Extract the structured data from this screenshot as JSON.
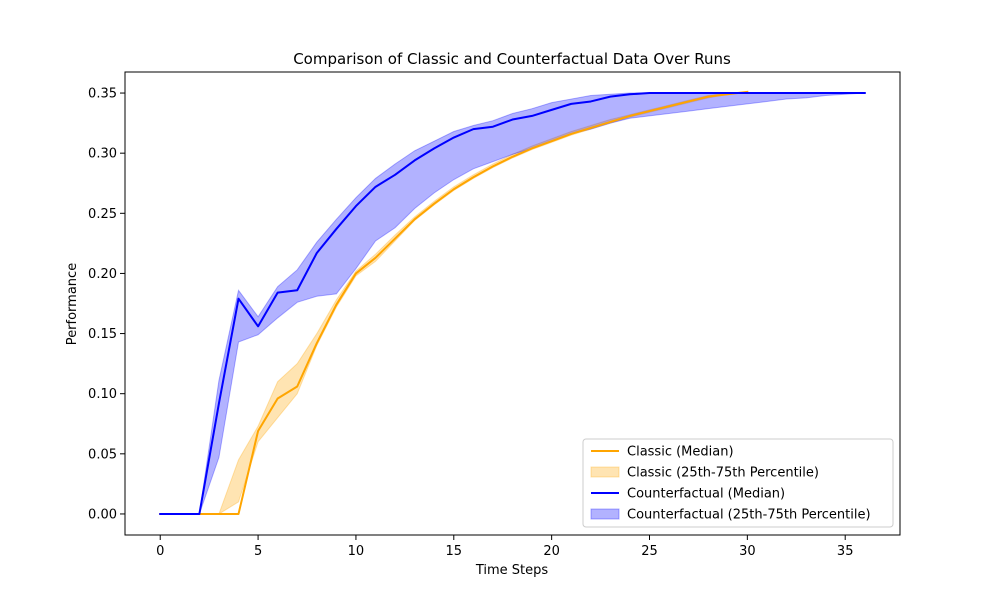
{
  "chart_data": {
    "type": "line",
    "title": "Comparison of Classic and Counterfactual Data Over Runs",
    "xlabel": "Time Steps",
    "ylabel": "Performance",
    "xlim": [
      -1.8,
      37.8
    ],
    "ylim": [
      -0.0175,
      0.3675
    ],
    "xticks": [
      0,
      5,
      10,
      15,
      20,
      25,
      30,
      35
    ],
    "yticks": [
      0.0,
      0.05,
      0.1,
      0.15,
      0.2,
      0.25,
      0.3,
      0.35
    ],
    "ytick_labels": [
      "0.00",
      "0.05",
      "0.10",
      "0.15",
      "0.20",
      "0.25",
      "0.30",
      "0.35"
    ],
    "grid": false,
    "legend_position": "lower-right",
    "series": [
      {
        "name": "Classic (Median)",
        "kind": "line",
        "color": "#ffa500",
        "x": [
          0,
          1,
          2,
          3,
          4,
          5,
          6,
          7,
          8,
          9,
          10,
          11,
          12,
          13,
          14,
          15,
          16,
          17,
          18,
          19,
          20,
          21,
          22,
          23,
          24,
          25,
          26,
          27,
          28,
          29,
          30
        ],
        "y": [
          0,
          0,
          0,
          0,
          0,
          0.069,
          0.096,
          0.106,
          0.142,
          0.174,
          0.2,
          0.213,
          0.229,
          0.245,
          0.258,
          0.27,
          0.28,
          0.289,
          0.297,
          0.304,
          0.31,
          0.316,
          0.321,
          0.326,
          0.331,
          0.335,
          0.339,
          0.343,
          0.347,
          0.349,
          0.351
        ]
      },
      {
        "name": "Classic (25th-75th Percentile)",
        "kind": "band",
        "color": "#ffa500",
        "opacity": 0.3,
        "x": [
          0,
          1,
          2,
          3,
          4,
          5,
          6,
          7,
          8,
          9,
          10,
          11,
          12,
          13,
          14,
          15,
          16,
          17,
          18,
          19,
          20,
          21,
          22,
          23,
          24,
          25,
          26,
          27,
          28,
          29,
          30
        ],
        "lower": [
          0,
          0,
          0,
          0,
          0.01,
          0.06,
          0.08,
          0.1,
          0.14,
          0.172,
          0.198,
          0.21,
          0.227,
          0.244,
          0.257,
          0.269,
          0.279,
          0.288,
          0.296,
          0.303,
          0.309,
          0.315,
          0.32,
          0.325,
          0.33,
          0.334,
          0.338,
          0.342,
          0.346,
          0.349,
          0.351
        ],
        "upper": [
          0,
          0,
          0,
          0,
          0.045,
          0.073,
          0.11,
          0.125,
          0.15,
          0.178,
          0.202,
          0.216,
          0.232,
          0.247,
          0.26,
          0.272,
          0.282,
          0.291,
          0.299,
          0.306,
          0.312,
          0.318,
          0.323,
          0.328,
          0.332,
          0.336,
          0.34,
          0.344,
          0.348,
          0.35,
          0.351
        ]
      },
      {
        "name": "Counterfactual (Median)",
        "kind": "line",
        "color": "#0000ff",
        "x": [
          0,
          1,
          2,
          3,
          4,
          5,
          6,
          7,
          8,
          9,
          10,
          11,
          12,
          13,
          14,
          15,
          16,
          17,
          18,
          19,
          20,
          21,
          22,
          23,
          24,
          25,
          26,
          27,
          28,
          29,
          30,
          31,
          32,
          33,
          34,
          35,
          36
        ],
        "y": [
          0,
          0,
          0,
          0.092,
          0.179,
          0.156,
          0.184,
          0.186,
          0.217,
          0.237,
          0.256,
          0.272,
          0.282,
          0.294,
          0.304,
          0.313,
          0.32,
          0.322,
          0.328,
          0.331,
          0.336,
          0.341,
          0.343,
          0.347,
          0.349,
          0.35,
          0.35,
          0.35,
          0.35,
          0.35,
          0.35,
          0.35,
          0.35,
          0.35,
          0.35,
          0.35,
          0.35
        ]
      },
      {
        "name": "Counterfactual (25th-75th Percentile)",
        "kind": "band",
        "color": "#0000ff",
        "opacity": 0.3,
        "x": [
          0,
          1,
          2,
          3,
          4,
          5,
          6,
          7,
          8,
          9,
          10,
          11,
          12,
          13,
          14,
          15,
          16,
          17,
          18,
          19,
          20,
          21,
          22,
          23,
          24,
          25,
          26,
          27,
          28,
          29,
          30,
          31,
          32,
          33,
          34,
          35,
          36
        ],
        "lower": [
          0,
          0,
          0,
          0.047,
          0.143,
          0.149,
          0.163,
          0.176,
          0.181,
          0.183,
          0.204,
          0.227,
          0.238,
          0.254,
          0.267,
          0.278,
          0.287,
          0.293,
          0.299,
          0.304,
          0.31,
          0.316,
          0.32,
          0.325,
          0.329,
          0.331,
          0.333,
          0.335,
          0.337,
          0.339,
          0.341,
          0.343,
          0.345,
          0.346,
          0.348,
          0.349,
          0.35
        ],
        "upper": [
          0,
          0,
          0,
          0.111,
          0.186,
          0.164,
          0.189,
          0.203,
          0.226,
          0.245,
          0.263,
          0.279,
          0.291,
          0.302,
          0.31,
          0.318,
          0.323,
          0.327,
          0.333,
          0.337,
          0.342,
          0.345,
          0.348,
          0.349,
          0.35,
          0.35,
          0.35,
          0.35,
          0.35,
          0.35,
          0.35,
          0.35,
          0.35,
          0.35,
          0.35,
          0.35,
          0.35
        ]
      }
    ]
  }
}
